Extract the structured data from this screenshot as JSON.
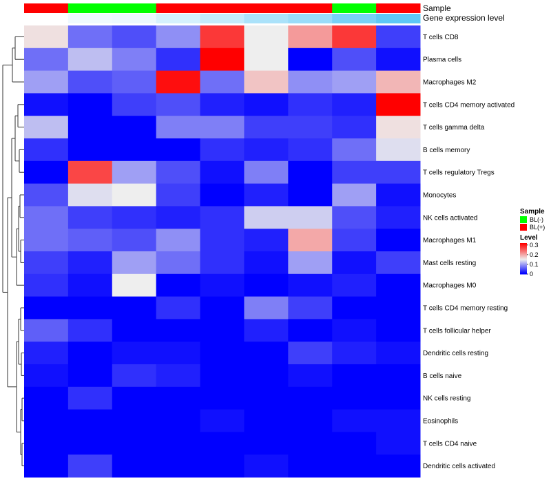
{
  "chart_data": {
    "type": "heatmap",
    "rows": [
      "T cells CD8",
      "Plasma cells",
      "Macrophages M2",
      "T cells CD4 memory activated",
      "T cells gamma delta",
      "B cells memory",
      "T cells regulatory  Tregs",
      "Monocytes",
      "NK cells activated",
      "Macrophages M1",
      "Mast cells resting",
      "Macrophages M0",
      "T cells CD4 memory resting",
      "T cells follicular helper",
      "Dendritic cells resting",
      "B cells naive",
      "NK cells resting",
      "Eosinophils",
      "T cells CD4 naive",
      "Dendritic cells activated"
    ],
    "values": [
      [
        0.16,
        0.07,
        0.05,
        0.09,
        0.28,
        0.15,
        0.21,
        0.28,
        0.04
      ],
      [
        0.07,
        0.12,
        0.08,
        0.03,
        0.32,
        0.15,
        0.0,
        0.05,
        0.01
      ],
      [
        0.1,
        0.05,
        0.06,
        0.31,
        0.07,
        0.18,
        0.09,
        0.1,
        0.19
      ],
      [
        0.01,
        0.0,
        0.04,
        0.05,
        0.02,
        0.01,
        0.03,
        0.02,
        0.32
      ],
      [
        0.12,
        0.0,
        0.0,
        0.08,
        0.08,
        0.04,
        0.04,
        0.03,
        0.16
      ],
      [
        0.03,
        0.0,
        0.0,
        0.0,
        0.03,
        0.02,
        0.03,
        0.07,
        0.14
      ],
      [
        0.0,
        0.27,
        0.1,
        0.05,
        0.01,
        0.08,
        0.0,
        0.04,
        0.04
      ],
      [
        0.05,
        0.14,
        0.15,
        0.04,
        0.0,
        0.02,
        0.0,
        0.1,
        0.01
      ],
      [
        0.07,
        0.04,
        0.03,
        0.02,
        0.03,
        0.13,
        0.13,
        0.05,
        0.02
      ],
      [
        0.07,
        0.06,
        0.05,
        0.09,
        0.03,
        0.02,
        0.2,
        0.04,
        0.0
      ],
      [
        0.04,
        0.02,
        0.1,
        0.07,
        0.03,
        0.01,
        0.1,
        0.01,
        0.04
      ],
      [
        0.03,
        0.01,
        0.15,
        0.0,
        0.01,
        0.0,
        0.01,
        0.02,
        0.0
      ],
      [
        0.0,
        0.0,
        0.0,
        0.03,
        0.0,
        0.08,
        0.04,
        0.0,
        0.0
      ],
      [
        0.06,
        0.03,
        0.0,
        0.0,
        0.0,
        0.02,
        0.0,
        0.01,
        0.0
      ],
      [
        0.02,
        0.0,
        0.01,
        0.01,
        0.0,
        0.0,
        0.04,
        0.02,
        0.01
      ],
      [
        0.01,
        0.0,
        0.03,
        0.02,
        0.0,
        0.0,
        0.01,
        0.0,
        0.0
      ],
      [
        0.0,
        0.03,
        0.0,
        0.0,
        0.0,
        0.0,
        0.0,
        0.0,
        0.0
      ],
      [
        0.0,
        0.0,
        0.0,
        0.0,
        0.01,
        0.0,
        0.0,
        0.01,
        0.01
      ],
      [
        0.0,
        0.0,
        0.0,
        0.0,
        0.0,
        0.0,
        0.0,
        0.0,
        0.01
      ],
      [
        0.0,
        0.04,
        0.0,
        0.0,
        0.0,
        0.01,
        0.0,
        0.0,
        0.0
      ]
    ],
    "column_annotations": {
      "sample": {
        "label": "Sample",
        "values": [
          "BL(+)",
          "BL(-)",
          "BL(-)",
          "BL(+)",
          "BL(+)",
          "BL(+)",
          "BL(+)",
          "BL(-)",
          "BL(+)"
        ]
      },
      "gene_expression_level": {
        "label": "Gene expression level",
        "values": [
          0.0,
          0.1,
          0.12,
          0.25,
          0.35,
          0.5,
          0.6,
          0.8,
          0.95
        ]
      }
    },
    "legend": {
      "sample": {
        "title": "Sample",
        "items": [
          {
            "label": "BL(-)",
            "color": "#00ff00"
          },
          {
            "label": "BL(+)",
            "color": "#ff0000"
          }
        ]
      },
      "level": {
        "title": "Level",
        "ticks": [
          {
            "value": 0,
            "label": "0"
          },
          {
            "value": 0.1,
            "label": "0.1"
          },
          {
            "value": 0.2,
            "label": "0.2"
          },
          {
            "value": 0.3,
            "label": "0.3"
          }
        ]
      }
    },
    "color_scale": {
      "min": 0,
      "mid": 0.15,
      "max": 0.32,
      "low": "#0000ff",
      "midcolor": "#eeeeee",
      "high": "#ff0000"
    },
    "annotation_colors": {
      "level_low": "#ffffff",
      "level_high": "#56c5f5"
    },
    "row_dendrogram": true,
    "legend_position": "right"
  }
}
